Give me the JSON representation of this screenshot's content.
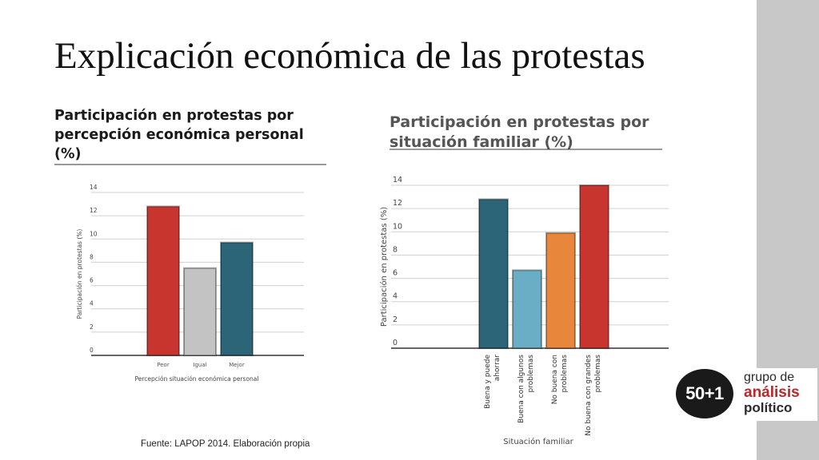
{
  "slide": {
    "title": "Explicación económica de las protestas",
    "source": "Fuente: LAPOP 2014. Elaboración propia"
  },
  "logo": {
    "mark": "50+1",
    "line1": "grupo de",
    "line2": "análisis",
    "line3": "político"
  },
  "colors": {
    "red": "#c8352f",
    "gray": "#c3c3c3",
    "teal": "#2c6478",
    "lightblue": "#6aaec6",
    "orange": "#e8873b",
    "strip": "#c8c8c8"
  },
  "chart_data": [
    {
      "type": "bar",
      "title_lines": [
        "Participación en protestas por",
        "percepción económica personal",
        "(%)"
      ],
      "categories": [
        "Peor",
        "Igual",
        "Mejor"
      ],
      "values": [
        12.8,
        7.5,
        9.7
      ],
      "bar_colors": [
        "#c8352f",
        "#c3c3c3",
        "#2c6478"
      ],
      "xlabel": "Percepción situación económica personal",
      "ylabel": "Participación en protestas (%)",
      "ylim": [
        0,
        14
      ],
      "yticks": [
        0,
        2,
        4,
        6,
        8,
        10,
        12,
        14
      ],
      "grid": true
    },
    {
      "type": "bar",
      "title_lines": [
        "Participación en protestas por",
        "situación familiar (%)"
      ],
      "categories": [
        [
          "Buena y puede",
          "ahorrar"
        ],
        [
          "Buena con algunos",
          "problemas"
        ],
        [
          "No buena con",
          "problemas"
        ],
        [
          "No buena con grandes",
          "problemas"
        ]
      ],
      "values": [
        12.8,
        6.7,
        9.9,
        14.0
      ],
      "bar_colors": [
        "#2c6478",
        "#6aaec6",
        "#e8873b",
        "#c8352f"
      ],
      "xlabel": "Situación familiar",
      "ylabel": "Participación en protestas (%)",
      "ylim": [
        0,
        14
      ],
      "yticks": [
        0,
        2,
        4,
        6,
        8,
        10,
        12,
        14
      ],
      "grid": true
    }
  ]
}
